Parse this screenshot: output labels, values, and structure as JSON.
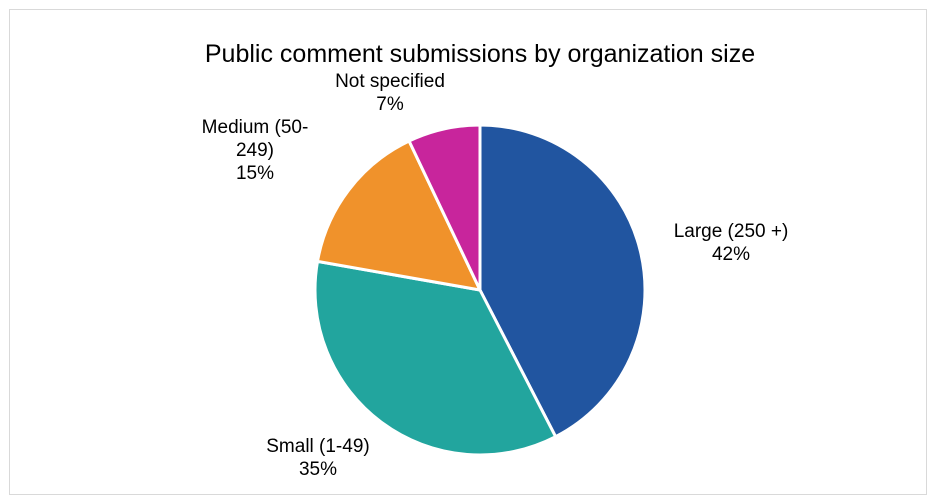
{
  "chart_data": {
    "type": "pie",
    "title": "Public comment submissions by organization size",
    "slices": [
      {
        "name": "Large (250 +)",
        "value": 42,
        "value_label": "42%",
        "color": "#2155a0",
        "label_lines": [
          "Large (250 +)",
          "42%"
        ]
      },
      {
        "name": "Small (1-49)",
        "value": 35,
        "value_label": "35%",
        "color": "#22a59e",
        "label_lines": [
          "Small (1-49)",
          "35%"
        ]
      },
      {
        "name": "Medium (50-249)",
        "value": 15,
        "value_label": "15%",
        "color": "#f0922b",
        "label_lines": [
          "Medium (50-",
          "249)",
          "15%"
        ]
      },
      {
        "name": "Not specified",
        "value": 7,
        "value_label": "7%",
        "color": "#c8259c",
        "label_lines": [
          "Not specified",
          "7%"
        ]
      }
    ],
    "start_angle_deg": 0,
    "direction": "clockwise",
    "legend": "none",
    "slice_border_color": "#ffffff"
  }
}
